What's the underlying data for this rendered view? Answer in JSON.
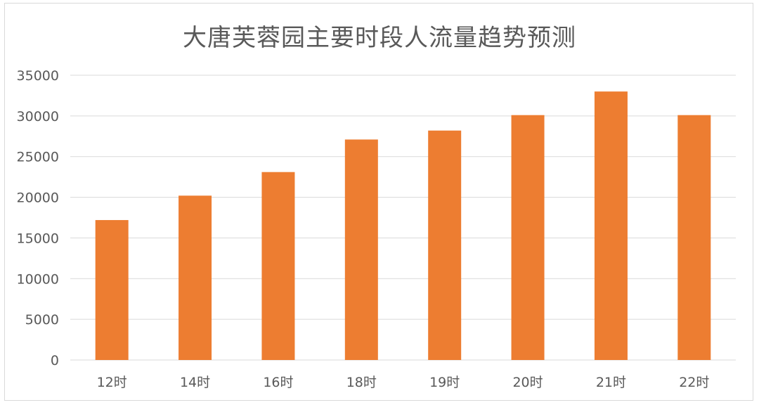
{
  "chart_data": {
    "type": "bar",
    "title": "大唐芙蓉园主要时段人流量趋势预测",
    "categories": [
      "12时",
      "14时",
      "16时",
      "18时",
      "19时",
      "20时",
      "21时",
      "22时"
    ],
    "values": [
      17200,
      20200,
      23100,
      27100,
      28200,
      30100,
      33000,
      30100
    ],
    "ylim": [
      0,
      35000
    ],
    "yticks": [
      0,
      5000,
      10000,
      15000,
      20000,
      25000,
      30000,
      35000
    ],
    "grid": true,
    "legend": "none",
    "bar_color": "#ED7D31",
    "grid_color": "#D9D9D9",
    "text_color": "#595959"
  }
}
